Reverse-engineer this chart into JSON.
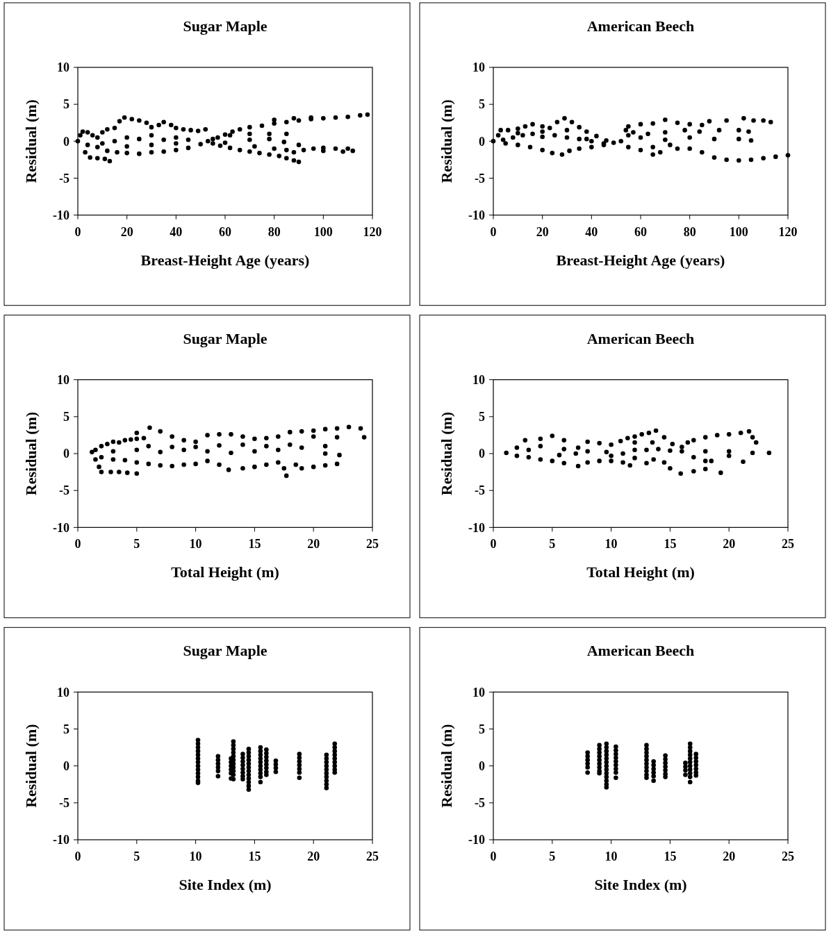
{
  "chart_data": [
    {
      "type": "scatter",
      "title": "Sugar Maple",
      "xlabel": "Breast-Height Age (years)",
      "ylabel": "Residual (m)",
      "xlim": [
        0,
        120
      ],
      "xticks": [
        0,
        20,
        40,
        60,
        80,
        100,
        120
      ],
      "ylim": [
        -10,
        10
      ],
      "yticks": [
        -10,
        -5,
        0,
        5,
        10
      ],
      "marker": "circle",
      "series": [
        {
          "color": "#000000",
          "x": [
            0,
            1,
            2,
            4,
            6,
            8,
            10,
            12,
            15,
            17,
            19,
            22,
            25,
            28,
            30,
            33,
            35,
            38,
            40,
            43,
            46,
            49,
            52,
            3,
            5,
            8,
            11,
            13,
            4,
            8,
            12,
            16,
            20,
            25,
            30,
            35,
            40,
            45,
            50,
            15,
            20,
            25,
            30,
            35,
            40,
            45,
            10,
            20,
            30,
            40,
            53,
            55,
            55,
            57,
            60,
            63,
            66,
            70,
            75,
            80,
            85,
            90,
            95,
            100,
            105,
            110,
            115,
            118,
            80,
            88,
            95,
            62,
            70,
            78,
            85,
            60,
            70,
            78,
            84,
            90,
            58,
            62,
            66,
            70,
            74,
            78,
            82,
            85,
            88,
            90,
            72,
            80,
            85,
            88,
            92,
            96,
            100,
            105,
            110,
            112,
            100,
            108
          ],
          "values": [
            0,
            0.8,
            1.3,
            1.2,
            0.8,
            0.5,
            1.2,
            1.6,
            1.8,
            2.7,
            3.2,
            3,
            2.8,
            2.5,
            1.9,
            2.2,
            2.6,
            2.2,
            1.8,
            1.6,
            1.5,
            1.4,
            1.6,
            -1.5,
            -2.2,
            -2.3,
            -2.4,
            -2.7,
            -0.5,
            -0.8,
            -1.3,
            -1.5,
            -1.6,
            -1.7,
            -1.5,
            -1.4,
            -1.2,
            -0.9,
            -0.4,
            0,
            0.5,
            0.3,
            0.8,
            0.2,
            0.5,
            0.2,
            -0.3,
            -0.7,
            -0.5,
            -0.3,
            0,
            0.3,
            -0.3,
            0.5,
            0.9,
            1.3,
            1.6,
            1.9,
            2.1,
            2.4,
            2.6,
            2.8,
            3,
            3.1,
            3.2,
            3.3,
            3.5,
            3.6,
            2.9,
            3.1,
            3.2,
            0.8,
            1,
            1,
            1,
            -0.2,
            0.2,
            0.3,
            -0.1,
            -0.5,
            -0.6,
            -0.9,
            -1.2,
            -1.4,
            -1.6,
            -1.8,
            -2,
            -2.3,
            -2.6,
            -2.8,
            -0.7,
            -1,
            -1.2,
            -1.5,
            -1.2,
            -1,
            -0.9,
            -1,
            -1,
            -1.3,
            -1.3,
            -1.4
          ]
        }
      ]
    },
    {
      "type": "scatter",
      "title": "American Beech",
      "xlabel": "Breast-Height Age (years)",
      "ylabel": "Residual (m)",
      "xlim": [
        0,
        120
      ],
      "xticks": [
        0,
        20,
        40,
        60,
        80,
        100,
        120
      ],
      "ylim": [
        -10,
        10
      ],
      "yticks": [
        -10,
        -5,
        0,
        5,
        10
      ],
      "marker": "circle",
      "series": [
        {
          "color": "#000000",
          "x": [
            0,
            2,
            3,
            6,
            10,
            13,
            16,
            20,
            23,
            26,
            29,
            32,
            35,
            38,
            42,
            46,
            49,
            4,
            8,
            12,
            16,
            20,
            25,
            30,
            35,
            40,
            45,
            5,
            10,
            15,
            20,
            24,
            28,
            31,
            35,
            40,
            45,
            10,
            20,
            30,
            38,
            52,
            55,
            54,
            55,
            60,
            65,
            70,
            75,
            80,
            85,
            88,
            95,
            102,
            106,
            110,
            113,
            57,
            63,
            70,
            78,
            84,
            92,
            100,
            104,
            60,
            70,
            80,
            90,
            100,
            105,
            55,
            60,
            65,
            68,
            75,
            80,
            85,
            90,
            95,
            100,
            105,
            110,
            115,
            120,
            65,
            72
          ],
          "values": [
            0,
            0.8,
            1.5,
            1.5,
            1.7,
            2,
            2.3,
            2,
            1.8,
            2.6,
            3.1,
            2.6,
            1.9,
            1.3,
            0.7,
            0.1,
            -0.2,
            0.2,
            0.5,
            0.8,
            1,
            0.6,
            0.8,
            0.5,
            0.3,
            0,
            -0.3,
            -0.3,
            -0.5,
            -0.8,
            -1.2,
            -1.6,
            -1.8,
            -1.3,
            -1,
            -0.8,
            -0.5,
            1.1,
            1.3,
            1.5,
            0.3,
            0,
            0.8,
            1.5,
            2,
            2.3,
            2.4,
            2.9,
            2.5,
            2.3,
            2.2,
            2.7,
            2.8,
            3.1,
            2.8,
            2.8,
            2.6,
            1.2,
            1,
            1.2,
            1.5,
            1.3,
            1.5,
            1.5,
            1.3,
            0.5,
            0.2,
            0.5,
            0.3,
            0.3,
            0.1,
            -0.8,
            -1.2,
            -1.8,
            -1.5,
            -1,
            -1,
            -1.5,
            -2.2,
            -2.5,
            -2.6,
            -2.5,
            -2.3,
            -2.1,
            -1.9,
            -0.8,
            -0.5
          ]
        }
      ]
    },
    {
      "type": "scatter",
      "title": "Sugar Maple",
      "xlabel": "Total Height (m)",
      "ylabel": "Residual (m)",
      "xlim": [
        0,
        25
      ],
      "xticks": [
        0,
        5,
        10,
        15,
        20,
        25
      ],
      "ylim": [
        -10,
        10
      ],
      "yticks": [
        -10,
        -5,
        0,
        5,
        10
      ],
      "marker": "circle",
      "series": [
        {
          "color": "#000000",
          "x": [
            1.2,
            1.5,
            1.8,
            2,
            2.8,
            3.5,
            4.2,
            5,
            1.5,
            2,
            2.5,
            3,
            3.5,
            4,
            4.5,
            5,
            5.6,
            5,
            6.1,
            7,
            8,
            9,
            10,
            11,
            12,
            13,
            14,
            15,
            16,
            17,
            18,
            19,
            20,
            21,
            22,
            23,
            24,
            20,
            22,
            24.3,
            2,
            3,
            4,
            5,
            6,
            7,
            8,
            9,
            10,
            11,
            12,
            12.8,
            14,
            15,
            16,
            17,
            17.5,
            17.7,
            18.5,
            19,
            20,
            21,
            22,
            22.2,
            21,
            3,
            5,
            7,
            9,
            11,
            13,
            15,
            17,
            19,
            21,
            6,
            8,
            10,
            12,
            14,
            16,
            18
          ],
          "values": [
            0.2,
            -0.8,
            -1.8,
            -2.5,
            -2.5,
            -2.5,
            -2.6,
            -2.7,
            0.5,
            1,
            1.3,
            1.6,
            1.5,
            1.8,
            1.9,
            2,
            2.1,
            2.8,
            3.5,
            3,
            2.3,
            1.8,
            1.6,
            2.5,
            2.6,
            2.6,
            2.3,
            2,
            2.1,
            2.3,
            2.9,
            3,
            3.1,
            3.3,
            3.4,
            3.6,
            3.4,
            2.3,
            2.2,
            2.2,
            -0.5,
            -0.8,
            -0.9,
            -1.2,
            -1.4,
            -1.6,
            -1.7,
            -1.5,
            -1.4,
            -1,
            -1.5,
            -2.2,
            -2,
            -1.8,
            -1.5,
            -1.2,
            -2,
            -3,
            -1.5,
            -2,
            -1.8,
            -1.6,
            -1.4,
            -0.2,
            0,
            0.3,
            0.5,
            0.2,
            0.5,
            0.3,
            0.1,
            0.3,
            0.5,
            0.8,
            1,
            1,
            0.9,
            0.9,
            1.1,
            1.2,
            1,
            1.2
          ]
        }
      ]
    },
    {
      "type": "scatter",
      "title": "American Beech",
      "xlabel": "Total Height (m)",
      "ylabel": "Residual (m)",
      "xlim": [
        0,
        25
      ],
      "xticks": [
        0,
        5,
        10,
        15,
        20,
        25
      ],
      "ylim": [
        -10,
        10
      ],
      "yticks": [
        -10,
        -5,
        0,
        5,
        10
      ],
      "marker": "circle",
      "series": [
        {
          "color": "#000000",
          "x": [
            1.1,
            2,
            2.7,
            4,
            5,
            6,
            7.2,
            8,
            9,
            10,
            10.8,
            12,
            13.5,
            11.4,
            12,
            12.6,
            13.2,
            13.8,
            14.5,
            15.2,
            16,
            16.5,
            17,
            18,
            19,
            20,
            21,
            21.7,
            22,
            22.3,
            23.4,
            22,
            20,
            18,
            17,
            18,
            18.5,
            19.3,
            18,
            17,
            15.9,
            15,
            14.5,
            21.2,
            20,
            2,
            3,
            4,
            5,
            6,
            7.2,
            8,
            9,
            10,
            11,
            11.6,
            13,
            13.6,
            3,
            4,
            5.6,
            7,
            8,
            9.6,
            11,
            12,
            13,
            14,
            15,
            16,
            6,
            10,
            12
          ],
          "values": [
            0.1,
            0.8,
            1.8,
            2,
            2.4,
            1.8,
            0.8,
            1.6,
            1.4,
            1.2,
            1.7,
            1.5,
            1.5,
            2.1,
            2.3,
            2.6,
            2.8,
            3.1,
            2.2,
            1.3,
            0.9,
            1.5,
            1.8,
            2.2,
            2.5,
            2.6,
            2.8,
            3,
            2.2,
            1.5,
            0.1,
            0.1,
            0.3,
            0.3,
            -0.5,
            -1,
            -1,
            -2.6,
            -2.1,
            -2.4,
            -2.7,
            -2,
            -1.2,
            -1.1,
            -0.3,
            -0.3,
            -0.5,
            -0.8,
            -1,
            -1.3,
            -1.7,
            -1.2,
            -1,
            -1,
            -1.2,
            -1.6,
            -1.3,
            -0.8,
            0.5,
            1,
            -0.2,
            0,
            0.3,
            0.2,
            0,
            0.5,
            0.5,
            0.6,
            0.4,
            0.3,
            0.6,
            -0.3,
            -0.6
          ]
        }
      ]
    },
    {
      "type": "scatter",
      "title": "Sugar Maple",
      "xlabel": "Site Index (m)",
      "ylabel": "Residual (m)",
      "xlim": [
        0,
        25
      ],
      "xticks": [
        0,
        5,
        10,
        15,
        20,
        25
      ],
      "ylim": [
        -10,
        10
      ],
      "yticks": [
        -10,
        -5,
        0,
        5,
        10
      ],
      "marker": "circle",
      "series": [
        {
          "color": "#000000",
          "x": [
            10.2,
            10.2,
            10.2,
            10.2,
            10.2,
            10.2,
            10.2,
            10.2,
            10.2,
            10.2,
            10.2,
            10.2,
            10.2
          ],
          "values": [
            3.5,
            3,
            2.5,
            2,
            1.5,
            1,
            0.5,
            0,
            -0.5,
            -1,
            -1.5,
            -2,
            -2.3
          ]
        },
        {
          "color": "#000000",
          "x": [
            11.9,
            11.9,
            11.9,
            11.9,
            11.9,
            11.9
          ],
          "values": [
            1.3,
            0.8,
            0.3,
            -0.2,
            -0.7,
            -1.4
          ]
        },
        {
          "color": "#000000",
          "x": [
            13,
            13,
            13,
            13,
            13,
            13
          ],
          "values": [
            1,
            0.5,
            0,
            -0.5,
            -1,
            -1.7
          ]
        },
        {
          "color": "#000000",
          "x": [
            13.2,
            13.2,
            13.2,
            13.2,
            13.2,
            13.2,
            13.2,
            13.2,
            13.2,
            13.2,
            13.2
          ],
          "values": [
            3.3,
            2.8,
            2.3,
            1.8,
            1.3,
            0.8,
            0.3,
            -0.2,
            -0.7,
            -1.2,
            -1.8
          ]
        },
        {
          "color": "#000000",
          "x": [
            14,
            14,
            14,
            14,
            14,
            14,
            14,
            14
          ],
          "values": [
            1.6,
            1.1,
            0.6,
            0.1,
            -0.4,
            -0.9,
            -1.4,
            -1.8
          ]
        },
        {
          "color": "#000000",
          "x": [
            14.5,
            14.5,
            14.5,
            14.5,
            14.5,
            14.5,
            14.5,
            14.5,
            14.5,
            14.5,
            14.5,
            14.5
          ],
          "values": [
            2.3,
            1.8,
            1.3,
            0.8,
            0.3,
            -0.2,
            -0.7,
            -1.2,
            -1.7,
            -2.2,
            -2.7,
            -3.2
          ]
        },
        {
          "color": "#000000",
          "x": [
            15.5,
            15.5,
            15.5,
            15.5,
            15.5,
            15.5,
            15.5,
            15.5,
            15.5,
            15.5
          ],
          "values": [
            2.5,
            2,
            1.5,
            1,
            0.5,
            0,
            -0.5,
            -1,
            -1.5,
            -2.2
          ]
        },
        {
          "color": "#000000",
          "x": [
            16,
            16,
            16,
            16,
            16,
            16,
            16,
            16
          ],
          "values": [
            2.2,
            1.7,
            1.2,
            0.7,
            0.2,
            -0.3,
            -0.8,
            -1.2
          ]
        },
        {
          "color": "#000000",
          "x": [
            16.8,
            16.8,
            16.8,
            16.8
          ],
          "values": [
            0.7,
            0.2,
            -0.3,
            -0.8
          ]
        },
        {
          "color": "#000000",
          "x": [
            18.8,
            18.8,
            18.8,
            18.8,
            18.8,
            18.8,
            18.8
          ],
          "values": [
            1.6,
            1.1,
            0.6,
            0.1,
            -0.4,
            -0.9,
            -1.6
          ]
        },
        {
          "color": "#000000",
          "x": [
            21.1,
            21.1,
            21.1,
            21.1,
            21.1,
            21.1,
            21.1,
            21.1,
            21.1,
            21.1
          ],
          "values": [
            1.5,
            1,
            0.5,
            0,
            -0.5,
            -1,
            -1.5,
            -2,
            -2.5,
            -3
          ]
        },
        {
          "color": "#000000",
          "x": [
            21.8,
            21.8,
            21.8,
            21.8,
            21.8,
            21.8,
            21.8,
            21.8,
            21.8
          ],
          "values": [
            3,
            2.5,
            2,
            1.5,
            1,
            0.5,
            0,
            -0.5,
            -0.9
          ]
        }
      ]
    },
    {
      "type": "scatter",
      "title": "American Beech",
      "xlabel": "Site Index (m)",
      "ylabel": "Residual (m)",
      "xlim": [
        0,
        25
      ],
      "xticks": [
        0,
        5,
        10,
        15,
        20,
        25
      ],
      "ylim": [
        -10,
        10
      ],
      "yticks": [
        -10,
        -5,
        0,
        5,
        10
      ],
      "marker": "circle",
      "series": [
        {
          "color": "#000000",
          "x": [
            8,
            8,
            8,
            8,
            8,
            8
          ],
          "values": [
            1.8,
            1.3,
            0.8,
            0.3,
            -0.2,
            -0.9
          ]
        },
        {
          "color": "#000000",
          "x": [
            9,
            9,
            9,
            9,
            9,
            9,
            9,
            9,
            9
          ],
          "values": [
            2.8,
            2.3,
            1.8,
            1.3,
            0.8,
            0.3,
            -0.2,
            -0.7,
            -1
          ]
        },
        {
          "color": "#000000",
          "x": [
            9.6,
            9.6,
            9.6,
            9.6,
            9.6,
            9.6,
            9.6,
            9.6,
            9.6,
            9.6,
            9.6,
            9.6,
            9.6
          ],
          "values": [
            3,
            2.5,
            2,
            1.5,
            1,
            0.5,
            0,
            -0.5,
            -1,
            -1.5,
            -2,
            -2.5,
            -2.9
          ]
        },
        {
          "color": "#000000",
          "x": [
            10.4,
            10.4,
            10.4,
            10.4,
            10.4,
            10.4,
            10.4,
            10.4,
            10.4
          ],
          "values": [
            2.6,
            2.1,
            1.6,
            1.1,
            0.6,
            0.1,
            -0.4,
            -0.9,
            -1.6
          ]
        },
        {
          "color": "#000000",
          "x": [
            13,
            13,
            13,
            13,
            13,
            13,
            13,
            13,
            13,
            13
          ],
          "values": [
            2.8,
            2.3,
            1.8,
            1.3,
            0.8,
            0.3,
            -0.2,
            -0.7,
            -1.2,
            -1.6
          ]
        },
        {
          "color": "#000000",
          "x": [
            13.6,
            13.6,
            13.6,
            13.6,
            13.6,
            13.6
          ],
          "values": [
            0.6,
            0.1,
            -0.4,
            -0.9,
            -1.4,
            -2
          ]
        },
        {
          "color": "#000000",
          "x": [
            14.6,
            14.6,
            14.6,
            14.6,
            14.6,
            14.6,
            14.6
          ],
          "values": [
            1.4,
            0.9,
            0.4,
            -0.1,
            -0.6,
            -1.1,
            -1.5
          ]
        },
        {
          "color": "#000000",
          "x": [
            16.3,
            16.3,
            16.3,
            16.3
          ],
          "values": [
            0.4,
            -0.1,
            -0.6,
            -1.2
          ]
        },
        {
          "color": "#000000",
          "x": [
            16.7,
            16.7,
            16.7,
            16.7,
            16.7,
            16.7,
            16.7,
            16.7,
            16.7,
            16.7,
            16.7
          ],
          "values": [
            3,
            2.5,
            2,
            1.5,
            1,
            0.5,
            0,
            -0.5,
            -1,
            -1.5,
            -2.2
          ]
        },
        {
          "color": "#000000",
          "x": [
            17.2,
            17.2,
            17.2,
            17.2,
            17.2,
            17.2,
            17.2
          ],
          "values": [
            1.6,
            1.1,
            0.6,
            0.1,
            -0.4,
            -0.9,
            -1.3
          ]
        }
      ]
    }
  ]
}
